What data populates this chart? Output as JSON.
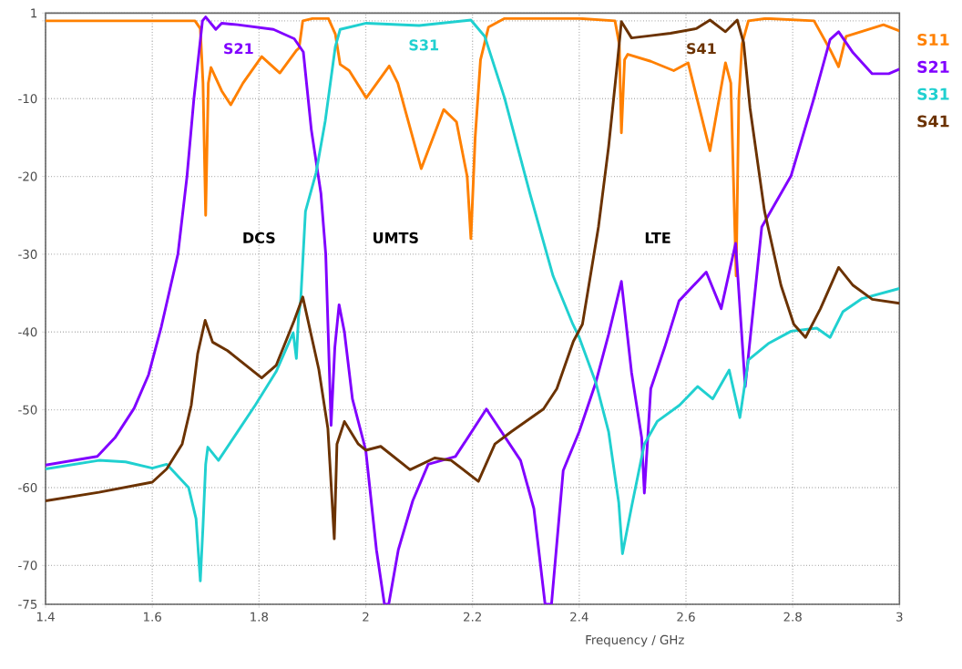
{
  "chart_data": {
    "type": "line",
    "xlabel": "Frequency / GHz",
    "xlim": [
      1.4,
      3
    ],
    "ylim": [
      -75,
      1
    ],
    "xticks": [
      1.4,
      1.6,
      1.8,
      2,
      2.2,
      2.4,
      2.6,
      2.8,
      3
    ],
    "yticks": [
      1,
      {
        "value": 0,
        "label": null
      },
      -10,
      -20,
      -30,
      -40,
      -50,
      -60,
      -70,
      -75
    ],
    "grid": true,
    "legend": "right",
    "marker": "none",
    "line_style": "solid",
    "series": [
      {
        "name": "S11",
        "color": "#ff8000",
        "x": [
          1.4,
          1.6,
          1.68,
          1.69,
          1.695,
          1.7,
          1.705,
          1.71,
          1.73,
          1.747,
          1.77,
          1.805,
          1.839,
          1.87,
          1.875,
          1.882,
          1.9,
          1.93,
          1.943,
          1.952,
          1.969,
          2.001,
          2.044,
          2.06,
          2.104,
          2.146,
          2.17,
          2.19,
          2.197,
          2.205,
          2.215,
          2.23,
          2.26,
          2.4,
          2.467,
          2.475,
          2.479,
          2.485,
          2.491,
          2.534,
          2.577,
          2.604,
          2.645,
          2.674,
          2.684,
          2.694,
          2.699,
          2.705,
          2.717,
          2.75,
          2.84,
          2.87,
          2.886,
          2.9,
          2.918,
          2.97,
          3.0
        ],
        "values": [
          0,
          0,
          0,
          -1,
          -8,
          -25,
          -8,
          -6,
          -9,
          -10.8,
          -8,
          -4.6,
          -6.7,
          -3.8,
          -3.5,
          0,
          0.3,
          0.3,
          -1.7,
          -5.6,
          -6.4,
          -9.9,
          -5.8,
          -8,
          -19,
          -11.4,
          -13,
          -20,
          -28,
          -15,
          -5,
          -0.8,
          0.3,
          0.3,
          0,
          -3,
          -14.4,
          -5,
          -4.3,
          -5.2,
          -6.4,
          -5.4,
          -16.7,
          -5.4,
          -8,
          -32.8,
          -10,
          -3,
          0,
          0.3,
          0,
          -3.7,
          -5.9,
          -2,
          -1.6,
          -0.5,
          -1.3
        ]
      },
      {
        "name": "S21",
        "color": "#8000ff",
        "x": [
          1.4,
          1.497,
          1.53,
          1.566,
          1.593,
          1.617,
          1.648,
          1.665,
          1.678,
          1.694,
          1.7,
          1.719,
          1.73,
          1.76,
          1.827,
          1.866,
          1.883,
          1.898,
          1.916,
          1.925,
          1.935,
          1.942,
          1.95,
          1.96,
          1.975,
          2.0,
          2.02,
          2.035,
          2.043,
          2.061,
          2.088,
          2.117,
          2.168,
          2.191,
          2.226,
          2.29,
          2.315,
          2.336,
          2.348,
          2.37,
          2.4,
          2.431,
          2.455,
          2.479,
          2.498,
          2.517,
          2.522,
          2.534,
          2.56,
          2.587,
          2.638,
          2.666,
          2.693,
          2.711,
          2.742,
          2.797,
          2.84,
          2.87,
          2.886,
          2.913,
          2.949,
          2.98,
          3.0
        ],
        "values": [
          -57.1,
          -56,
          -53.6,
          -49.8,
          -45.5,
          -39.3,
          -30,
          -20,
          -10,
          0,
          0.5,
          -1.1,
          -0.3,
          -0.5,
          -1.1,
          -2.3,
          -4,
          -14,
          -22.2,
          -30,
          -52,
          -42,
          -36.5,
          -40,
          -48.6,
          -55.2,
          -68,
          -75,
          -75,
          -68,
          -61.7,
          -57,
          -56,
          -53.6,
          -49.9,
          -56.5,
          -62.7,
          -75,
          -75,
          -57.8,
          -52.8,
          -46.5,
          -40.3,
          -33.5,
          -45.2,
          -53.6,
          -60.7,
          -47.3,
          -42,
          -36,
          -32.3,
          -37,
          -28.6,
          -47,
          -26.5,
          -19.9,
          -9.9,
          -2.4,
          -1.4,
          -4.1,
          -6.8,
          -6.8,
          -6.2
        ]
      },
      {
        "name": "S31",
        "color": "#20d0d0",
        "x": [
          1.4,
          1.5,
          1.55,
          1.6,
          1.627,
          1.668,
          1.682,
          1.69,
          1.695,
          1.7,
          1.704,
          1.724,
          1.759,
          1.793,
          1.832,
          1.864,
          1.87,
          1.874,
          1.878,
          1.887,
          1.907,
          1.924,
          1.943,
          1.952,
          2.001,
          2.1,
          2.197,
          2.223,
          2.26,
          2.308,
          2.351,
          2.388,
          2.4,
          2.431,
          2.455,
          2.474,
          2.481,
          2.498,
          2.522,
          2.546,
          2.588,
          2.622,
          2.65,
          2.681,
          2.701,
          2.717,
          2.754,
          2.797,
          2.845,
          2.87,
          2.894,
          2.93,
          3.0
        ],
        "values": [
          -57.6,
          -56.5,
          -56.7,
          -57.5,
          -57,
          -60,
          -64,
          -72,
          -65,
          -57,
          -54.8,
          -56.5,
          -52.9,
          -49.4,
          -45.1,
          -40.1,
          -43.4,
          -38,
          -36,
          -24.5,
          -19.5,
          -12.9,
          -3.3,
          -1.1,
          -0.3,
          -0.6,
          0.1,
          -2,
          -9.9,
          -22.3,
          -32.8,
          -39,
          -40.7,
          -46.5,
          -52.8,
          -61.9,
          -68.5,
          -62.5,
          -54.4,
          -51.5,
          -49.4,
          -47,
          -48.6,
          -44.9,
          -51,
          -43.6,
          -41.5,
          -39.9,
          -39.5,
          -40.7,
          -37.4,
          -35.7,
          -34.4
        ]
      },
      {
        "name": "S41",
        "color": "#6b3200",
        "x": [
          1.4,
          1.5,
          1.6,
          1.627,
          1.656,
          1.673,
          1.685,
          1.699,
          1.713,
          1.741,
          1.805,
          1.832,
          1.866,
          1.882,
          1.912,
          1.929,
          1.941,
          1.946,
          1.96,
          1.986,
          2.0,
          2.028,
          2.083,
          2.129,
          2.16,
          2.211,
          2.242,
          2.273,
          2.333,
          2.358,
          2.389,
          2.406,
          2.436,
          2.455,
          2.471,
          2.479,
          2.498,
          2.534,
          2.571,
          2.619,
          2.645,
          2.674,
          2.696,
          2.708,
          2.72,
          2.747,
          2.778,
          2.802,
          2.824,
          2.852,
          2.886,
          2.913,
          2.949,
          3.0
        ],
        "values": [
          -61.7,
          -60.6,
          -59.3,
          -57.6,
          -54.4,
          -49.4,
          -42.8,
          -38.5,
          -41.3,
          -42.4,
          -45.9,
          -44.3,
          -38.5,
          -35.5,
          -44.8,
          -52.4,
          -66.6,
          -54.4,
          -51.5,
          -54.4,
          -55.2,
          -54.7,
          -57.7,
          -56.2,
          -56.5,
          -59.2,
          -54.4,
          -52.8,
          -49.9,
          -47.3,
          -41.2,
          -39,
          -26.5,
          -16.2,
          -5.7,
          -0.1,
          -2.2,
          -1.9,
          -1.6,
          -1,
          0.1,
          -1.4,
          0.1,
          -2.8,
          -11.2,
          -24.4,
          -34,
          -39,
          -40.7,
          -37,
          -31.7,
          -34,
          -35.8,
          -36.3
        ]
      }
    ],
    "annotations": [
      "S21",
      "S31",
      "S41",
      "DCS",
      "UMTS",
      "LTE"
    ]
  }
}
